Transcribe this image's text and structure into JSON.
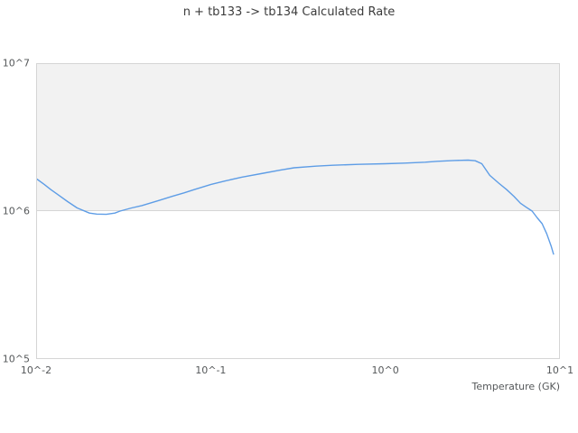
{
  "chart_data": {
    "type": "line",
    "title": "n + tb133 -> tb134 Calculated Rate",
    "xlabel": "Temperature (GK)",
    "ylabel": "",
    "x_scale": "log",
    "y_scale": "log",
    "xlim": [
      0.01,
      10
    ],
    "ylim": [
      100000,
      10000000
    ],
    "x_ticks": [
      "10^-2",
      "10^-1",
      "10^0",
      "10^1"
    ],
    "y_ticks": [
      "10^7",
      "10^6",
      "10^5"
    ],
    "legend": "none",
    "grid": "off",
    "shaded_band_y": [
      1000000,
      10000000
    ],
    "band_color": "#f2f2f2",
    "axis_line_color": "#d5d5d5",
    "series": [
      {
        "name": "calculated-rate",
        "color": "#5e9de6",
        "x": [
          0.01,
          0.011,
          0.012,
          0.013,
          0.015,
          0.017,
          0.02,
          0.022,
          0.025,
          0.028,
          0.03,
          0.035,
          0.04,
          0.05,
          0.06,
          0.07,
          0.08,
          0.1,
          0.12,
          0.15,
          0.2,
          0.25,
          0.3,
          0.4,
          0.5,
          0.7,
          1.0,
          1.3,
          1.7,
          2.0,
          2.5,
          3.0,
          3.3,
          3.6,
          4.0,
          4.5,
          5.0,
          5.5,
          6.0,
          6.5,
          7.0,
          7.5,
          8.0,
          8.5,
          9.0,
          9.3
        ],
        "y": [
          1650000,
          1520000,
          1400000,
          1310000,
          1160000,
          1050000,
          970000,
          955000,
          950000,
          970000,
          1000000,
          1050000,
          1090000,
          1180000,
          1260000,
          1330000,
          1400000,
          1520000,
          1600000,
          1700000,
          1810000,
          1900000,
          1970000,
          2020000,
          2050000,
          2080000,
          2100000,
          2120000,
          2150000,
          2180000,
          2210000,
          2220000,
          2200000,
          2100000,
          1750000,
          1550000,
          1400000,
          1260000,
          1130000,
          1060000,
          1000000,
          900000,
          820000,
          700000,
          580000,
          510000
        ]
      }
    ]
  }
}
